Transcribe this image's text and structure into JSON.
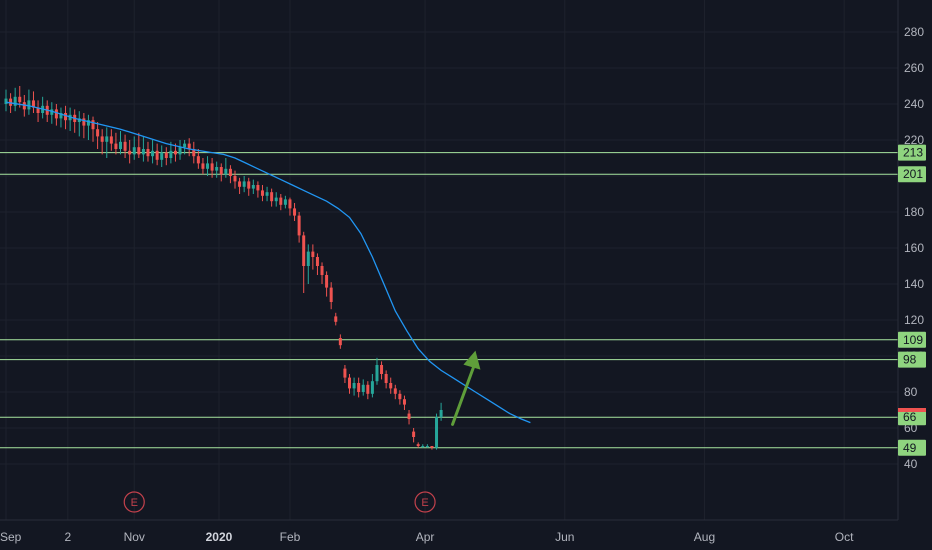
{
  "chart_data": {
    "type": "candlestick",
    "y_ticks": [
      280,
      260,
      240,
      220,
      200,
      180,
      160,
      140,
      120,
      100,
      80,
      60,
      40
    ],
    "ylim": [
      33,
      287
    ],
    "x_ticks": [
      {
        "label": "Sep",
        "x": 0
      },
      {
        "label": "2",
        "x": 27
      },
      {
        "label": "Nov",
        "x": 56
      },
      {
        "label": "2020",
        "x": 93,
        "bold": true
      },
      {
        "label": "Feb",
        "x": 124
      },
      {
        "label": "Apr",
        "x": 183
      },
      {
        "label": "Jun",
        "x": 244
      },
      {
        "label": "Aug",
        "x": 305
      },
      {
        "label": "Oct",
        "x": 366
      }
    ],
    "xlim": [
      0,
      403
    ],
    "levels": [
      213,
      201,
      109,
      98,
      66,
      49
    ],
    "earnings_markers": [
      {
        "label": "E",
        "x": 56
      },
      {
        "label": "E",
        "x": 183
      }
    ],
    "last_price": 70,
    "ma_series": [
      [
        0,
        241
      ],
      [
        10,
        239
      ],
      [
        20,
        236
      ],
      [
        30,
        232
      ],
      [
        40,
        229
      ],
      [
        50,
        226
      ],
      [
        60,
        222
      ],
      [
        70,
        218
      ],
      [
        80,
        215
      ],
      [
        90,
        213
      ],
      [
        95,
        212
      ],
      [
        100,
        210
      ],
      [
        105,
        207
      ],
      [
        110,
        204
      ],
      [
        115,
        201
      ],
      [
        120,
        198
      ],
      [
        125,
        195
      ],
      [
        130,
        192
      ],
      [
        135,
        189
      ],
      [
        140,
        186
      ],
      [
        145,
        182
      ],
      [
        150,
        177
      ],
      [
        155,
        168
      ],
      [
        160,
        155
      ],
      [
        165,
        140
      ],
      [
        170,
        125
      ],
      [
        175,
        114
      ],
      [
        180,
        104
      ],
      [
        185,
        97
      ],
      [
        190,
        92
      ],
      [
        195,
        88
      ],
      [
        200,
        84
      ],
      [
        205,
        80
      ],
      [
        210,
        76
      ],
      [
        215,
        72
      ],
      [
        220,
        68
      ],
      [
        225,
        65
      ],
      [
        229,
        63
      ]
    ],
    "candles": [
      [
        0,
        240,
        243,
        248,
        236
      ],
      [
        2,
        243,
        239,
        246,
        235
      ],
      [
        4,
        239,
        244,
        249,
        236
      ],
      [
        6,
        244,
        241,
        250,
        238
      ],
      [
        8,
        241,
        237,
        245,
        233
      ],
      [
        10,
        237,
        242,
        248,
        234
      ],
      [
        12,
        242,
        238,
        247,
        235
      ],
      [
        14,
        238,
        235,
        242,
        230
      ],
      [
        16,
        235,
        239,
        244,
        232
      ],
      [
        18,
        239,
        234,
        242,
        230
      ],
      [
        20,
        234,
        237,
        241,
        229
      ],
      [
        22,
        237,
        232,
        240,
        228
      ],
      [
        24,
        232,
        235,
        238,
        227
      ],
      [
        26,
        235,
        231,
        239,
        226
      ],
      [
        28,
        231,
        234,
        238,
        225
      ],
      [
        30,
        234,
        230,
        237,
        224
      ],
      [
        32,
        230,
        232,
        236,
        222
      ],
      [
        34,
        232,
        228,
        235,
        221
      ],
      [
        36,
        228,
        231,
        234,
        220
      ],
      [
        38,
        231,
        226,
        233,
        219
      ],
      [
        40,
        226,
        222,
        230,
        215
      ],
      [
        42,
        222,
        219,
        226,
        212
      ],
      [
        44,
        219,
        222,
        227,
        210
      ],
      [
        46,
        222,
        218,
        226,
        214
      ],
      [
        48,
        218,
        215,
        224,
        212
      ],
      [
        50,
        215,
        219,
        225,
        212
      ],
      [
        52,
        219,
        214,
        223,
        210
      ],
      [
        54,
        214,
        212,
        220,
        207
      ],
      [
        56,
        212,
        216,
        222,
        209
      ],
      [
        58,
        216,
        212,
        224,
        210
      ],
      [
        60,
        212,
        215,
        222,
        208
      ],
      [
        62,
        215,
        211,
        219,
        208
      ],
      [
        64,
        211,
        214,
        220,
        207
      ],
      [
        66,
        214,
        209,
        218,
        206
      ],
      [
        68,
        209,
        213,
        217,
        205
      ],
      [
        70,
        213,
        210,
        216,
        206
      ],
      [
        72,
        210,
        214,
        219,
        207
      ],
      [
        74,
        214,
        212,
        218,
        208
      ],
      [
        76,
        212,
        216,
        220,
        209
      ],
      [
        78,
        216,
        218,
        220,
        212
      ],
      [
        80,
        218,
        215,
        221,
        211
      ],
      [
        82,
        215,
        211,
        219,
        207
      ],
      [
        84,
        211,
        207,
        215,
        204
      ],
      [
        86,
        207,
        204,
        210,
        201
      ],
      [
        88,
        204,
        207,
        211,
        200
      ],
      [
        90,
        207,
        203,
        210,
        199
      ],
      [
        92,
        203,
        205,
        208,
        199
      ],
      [
        94,
        205,
        201,
        207,
        197
      ],
      [
        96,
        201,
        204,
        210,
        199
      ],
      [
        98,
        204,
        200,
        206,
        196
      ],
      [
        100,
        200,
        197,
        203,
        193
      ],
      [
        102,
        197,
        194,
        199,
        190
      ],
      [
        104,
        194,
        197,
        200,
        191
      ],
      [
        106,
        197,
        193,
        199,
        189
      ],
      [
        108,
        193,
        195,
        198,
        190
      ],
      [
        110,
        195,
        192,
        197,
        188
      ],
      [
        112,
        192,
        189,
        195,
        186
      ],
      [
        114,
        189,
        191,
        194,
        186
      ],
      [
        116,
        191,
        186,
        193,
        183
      ],
      [
        118,
        186,
        188,
        191,
        183
      ],
      [
        120,
        188,
        184,
        190,
        181
      ],
      [
        122,
        184,
        187,
        189,
        182
      ],
      [
        124,
        187,
        182,
        188,
        178
      ],
      [
        126,
        182,
        178,
        185,
        175
      ],
      [
        128,
        178,
        167,
        180,
        163
      ],
      [
        130,
        167,
        150,
        169,
        135
      ],
      [
        132,
        150,
        158,
        162,
        140
      ],
      [
        134,
        158,
        155,
        162,
        148
      ],
      [
        136,
        155,
        150,
        157,
        145
      ],
      [
        138,
        150,
        145,
        152,
        140
      ],
      [
        140,
        145,
        138,
        147,
        133
      ],
      [
        142,
        138,
        130,
        141,
        126
      ],
      [
        144,
        122,
        119,
        124,
        117
      ],
      [
        146,
        110,
        106,
        112,
        104
      ],
      [
        148,
        93,
        88,
        95,
        85
      ],
      [
        150,
        88,
        82,
        90,
        79
      ],
      [
        152,
        82,
        85,
        88,
        78
      ],
      [
        154,
        85,
        80,
        88,
        77
      ],
      [
        156,
        80,
        84,
        87,
        78
      ],
      [
        158,
        84,
        79,
        86,
        76
      ],
      [
        160,
        79,
        86,
        90,
        77
      ],
      [
        162,
        86,
        95,
        99,
        84
      ],
      [
        164,
        95,
        90,
        97,
        87
      ],
      [
        166,
        90,
        85,
        92,
        82
      ],
      [
        168,
        85,
        82,
        88,
        79
      ],
      [
        170,
        82,
        79,
        84,
        76
      ],
      [
        172,
        79,
        76,
        81,
        73
      ],
      [
        174,
        76,
        73,
        78,
        70
      ],
      [
        176,
        68,
        65,
        70,
        62
      ],
      [
        178,
        58,
        55,
        60,
        52
      ],
      [
        180,
        51,
        50,
        52,
        49
      ],
      [
        182,
        50,
        50,
        51,
        49
      ],
      [
        184,
        50,
        50,
        51,
        49
      ],
      [
        186,
        50,
        49,
        50,
        48
      ],
      [
        188,
        49,
        66,
        68,
        48
      ],
      [
        190,
        66,
        70,
        74,
        64
      ]
    ],
    "arrow": {
      "from": [
        195,
        62
      ],
      "to": [
        205,
        103
      ]
    }
  },
  "colors": {
    "background": "#131722",
    "grid": "#1e222d",
    "axis_text": "#b2b5be",
    "up": "#26a69a",
    "down": "#ef5350",
    "ma": "#2196f3",
    "level_line": "#a8e6a0",
    "level_badge": "#8fd47f",
    "earnings": "#c2414c",
    "arrow": "#5f9e3a",
    "last_price": "#ef5350"
  },
  "icons": {
    "earnings": "earnings-e-icon",
    "arrow": "up-arrow-icon"
  }
}
